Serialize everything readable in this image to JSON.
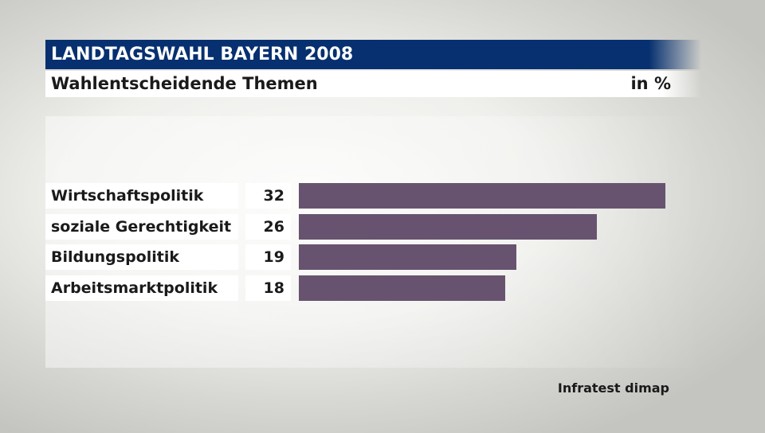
{
  "header": {
    "title": "LANDTAGSWAHL BAYERN 2008",
    "subtitle": "Wahlentscheidende Themen",
    "unit": "in %"
  },
  "chart_data": {
    "type": "bar",
    "orientation": "horizontal",
    "categories": [
      "Wirtschaftspolitik",
      "soziale Gerechtigkeit",
      "Bildungspolitik",
      "Arbeitsmarktpolitik"
    ],
    "values": [
      32,
      26,
      19,
      18
    ],
    "value_labels": [
      "32",
      "26",
      "19",
      "18"
    ],
    "title": "Wahlentscheidende Themen",
    "unit": "in %",
    "xlim": [
      0,
      32
    ],
    "bar_color": "#67536f",
    "grid": false
  },
  "source": "Infratest dimap",
  "colors": {
    "header_background": "#06306f",
    "bar": "#67536f"
  }
}
